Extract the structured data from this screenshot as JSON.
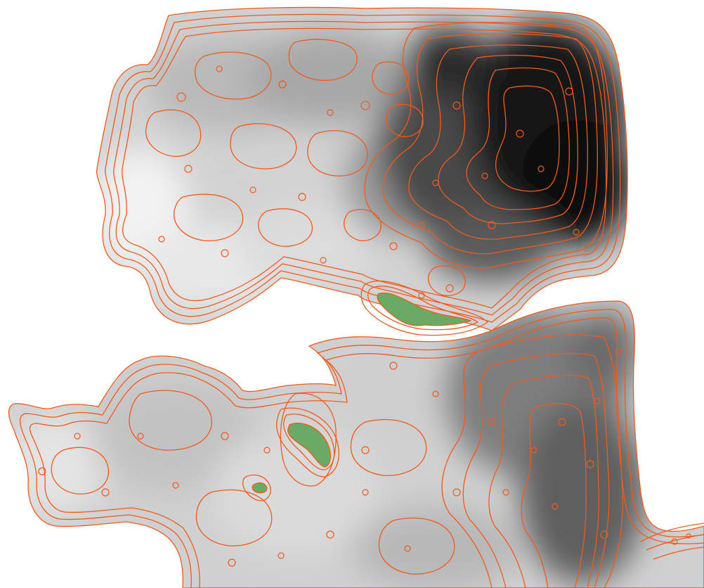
{
  "map": {
    "kind": "bathymetric-contour-map",
    "colors": {
      "background": "#ffffff",
      "contour": "#f05a1e",
      "land": "#6aaa64",
      "shade_light": "#e6e6e6",
      "shade_mid": "#b4b4b4",
      "shade_dark": "#6e6e6e",
      "shade_deepest": "#0a0a0a"
    },
    "legend": [],
    "features": {
      "basins": [
        "north-basin",
        "south-basin"
      ],
      "islands": [
        "north-island",
        "central-island",
        "small-island"
      ]
    }
  }
}
